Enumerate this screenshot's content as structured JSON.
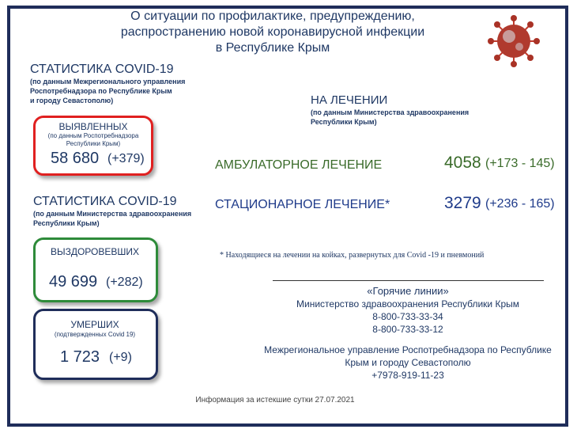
{
  "header": {
    "title": [
      "О ситуации по профилактике, предупреждению,",
      "распространению новой коронавирусной инфекции",
      "в Республике Крым"
    ]
  },
  "stats1": {
    "title": "СТАТИСТИКА COVID-19",
    "source": [
      "(по данным Межрегионального управления",
      "Роспотребнадзора по Республике Крым",
      "и городу Севастополю)"
    ]
  },
  "detected": {
    "label": "ВЫЯВЛЕННЫХ",
    "note": [
      "(по данным Роспотребнадзора",
      "Республики Крым)"
    ],
    "value": "58 680",
    "change": "(+379)"
  },
  "stats2": {
    "title": "СТАТИСТИКА COVID-19",
    "source": [
      "(по данным Министерства здравоохранения",
      "Республики Крым)"
    ]
  },
  "recovered": {
    "label": "ВЫЗДОРОВЕВШИХ",
    "value": "49 699",
    "change": "(+282)"
  },
  "deaths": {
    "label": "УМЕРШИХ",
    "note": "(подтвержденных Covid 19)",
    "value": "1 723",
    "change": "(+9)"
  },
  "treatment": {
    "title": "НА ЛЕЧЕНИИ",
    "source": [
      "(по данным Министерства здравоохранения",
      "Республики Крым)"
    ],
    "rows": [
      {
        "label": "АМБУЛАТОРНОЕ ЛЕЧЕНИЕ",
        "value": "4058",
        "change": "(+173 - 145)"
      },
      {
        "label": "СТАЦИОНАРНОЕ ЛЕЧЕНИЕ*",
        "value": "3279",
        "change": "(+236 - 165)"
      }
    ],
    "footnote": "* Находящиеся на лечении на койках, развернутых для Covid -19 и пневмоний"
  },
  "hotlines": {
    "title": "«Горячие линии»",
    "lines": [
      "Министерство здравоохранения Республики Крым",
      "8-800-733-33-34",
      "8-800-733-33-12",
      "Межрегиональное управление Роспотребнадзора по Республике",
      "Крым и городу Севастополю",
      "+7978-919-11-23"
    ]
  },
  "footer": "Информация за истекшие сутки 27.07.2021"
}
